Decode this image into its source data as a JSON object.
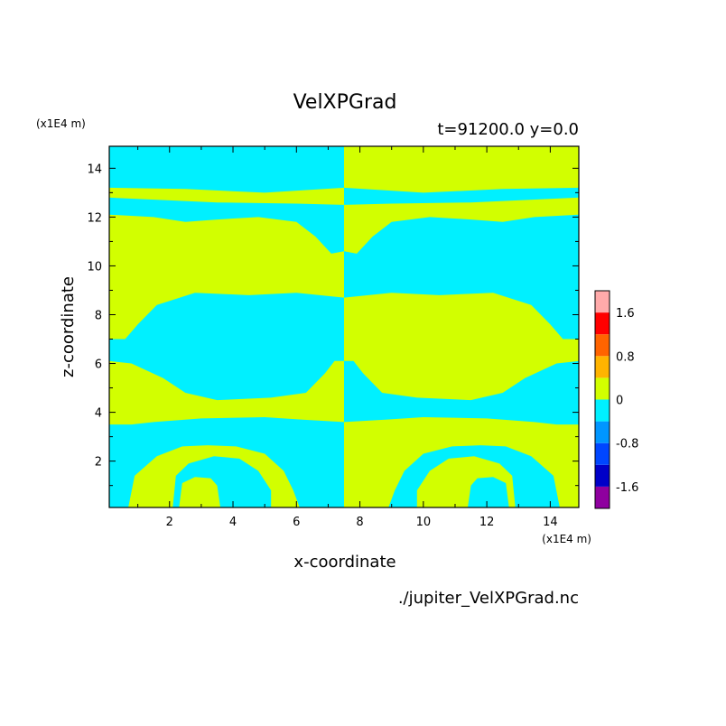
{
  "chart_data": {
    "type": "heatmap",
    "title": "VelXPGrad",
    "subtitle": "t=91200.0 y=0.0",
    "xlabel": "x-coordinate",
    "ylabel": "z-coordinate",
    "x_unit": "(x1E4 m)",
    "y_unit": "(x1E4 m)",
    "source_file": "./jupiter_VelXPGrad.nc",
    "xlim": [
      0.1,
      14.9
    ],
    "ylim": [
      0.1,
      14.9
    ],
    "x_ticks": [
      2,
      4,
      6,
      8,
      10,
      12,
      14
    ],
    "y_ticks": [
      2,
      4,
      6,
      8,
      10,
      12,
      14
    ],
    "colorbar": {
      "levels": [
        -2.0,
        -1.6,
        -1.2,
        -0.8,
        -0.4,
        0,
        0.4,
        0.8,
        1.2,
        1.6,
        2.0
      ],
      "colors": [
        "#8f009f",
        "#0000c8",
        "#0046ff",
        "#0096ff",
        "#00f0ff",
        "#d2ff00",
        "#ffb400",
        "#ff6400",
        "#ff0000",
        "#ffaaaa"
      ],
      "tick_labels": [
        "1.6",
        "0.8",
        "0",
        "-0.8",
        "-1.6"
      ],
      "tick_values": [
        1.6,
        0.8,
        0,
        -0.8,
        -1.6
      ]
    },
    "field_colors": {
      "negative": "#00f0ff",
      "positive": "#d2ff00"
    },
    "left_half_regions": {
      "sign_convention": "positive is the yellow-green band; the right half mirrors the left with the sign inverted",
      "positive_polygons": [
        [
          [
            0.1,
            12.1
          ],
          [
            1.5,
            12.0
          ],
          [
            2.5,
            11.8
          ],
          [
            3.5,
            11.9
          ],
          [
            4.8,
            12.0
          ],
          [
            6.0,
            11.8
          ],
          [
            6.6,
            11.2
          ],
          [
            7.1,
            10.5
          ],
          [
            7.5,
            10.6
          ],
          [
            7.5,
            8.7
          ],
          [
            6.0,
            8.9
          ],
          [
            4.5,
            8.8
          ],
          [
            2.8,
            8.9
          ],
          [
            1.6,
            8.4
          ],
          [
            1.0,
            7.6
          ],
          [
            0.6,
            7.0
          ],
          [
            0.1,
            7.0
          ]
        ],
        [
          [
            0.1,
            12.8
          ],
          [
            3.5,
            12.6
          ],
          [
            6.0,
            12.55
          ],
          [
            7.5,
            12.5
          ],
          [
            7.5,
            13.2
          ],
          [
            5.0,
            13.0
          ],
          [
            2.5,
            13.15
          ],
          [
            0.1,
            13.2
          ]
        ],
        [
          [
            0.1,
            6.1
          ],
          [
            0.8,
            6.0
          ],
          [
            1.8,
            5.4
          ],
          [
            2.5,
            4.8
          ],
          [
            3.5,
            4.5
          ],
          [
            5.2,
            4.6
          ],
          [
            6.3,
            4.8
          ],
          [
            6.9,
            5.6
          ],
          [
            7.2,
            6.1
          ],
          [
            7.5,
            6.1
          ],
          [
            7.5,
            3.6
          ],
          [
            6.2,
            3.7
          ],
          [
            5.0,
            3.8
          ],
          [
            3.0,
            3.75
          ],
          [
            1.5,
            3.6
          ],
          [
            0.8,
            3.5
          ],
          [
            0.1,
            3.5
          ]
        ],
        [
          [
            0.7,
            0.1
          ],
          [
            0.9,
            1.4
          ],
          [
            1.6,
            2.2
          ],
          [
            2.4,
            2.6
          ],
          [
            3.2,
            2.65
          ],
          [
            4.1,
            2.6
          ],
          [
            5.0,
            2.3
          ],
          [
            5.6,
            1.6
          ],
          [
            5.9,
            0.8
          ],
          [
            6.1,
            0.1
          ],
          [
            5.2,
            0.1
          ],
          [
            5.2,
            0.8
          ],
          [
            4.8,
            1.6
          ],
          [
            4.2,
            2.1
          ],
          [
            3.4,
            2.2
          ],
          [
            2.6,
            1.9
          ],
          [
            2.2,
            1.4
          ],
          [
            2.1,
            0.1
          ]
        ],
        [
          [
            2.3,
            0.1
          ],
          [
            2.4,
            1.1
          ],
          [
            2.8,
            1.35
          ],
          [
            3.3,
            1.3
          ],
          [
            3.5,
            1.0
          ],
          [
            3.6,
            0.1
          ]
        ]
      ]
    }
  }
}
